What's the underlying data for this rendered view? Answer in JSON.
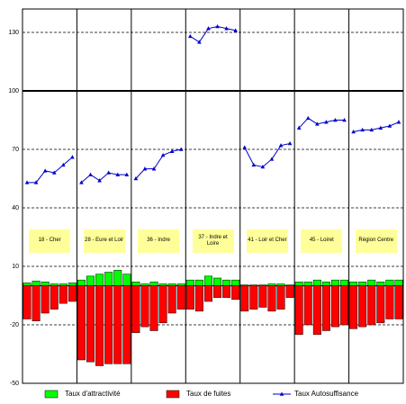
{
  "chart_data": {
    "type": "bar-line",
    "categories": [
      "18 - Cher",
      "28 - Eure et Loir",
      "36 - Indre",
      "37 - Indre et Loire",
      "41 - Loir et Cher",
      "45 - Loiret",
      "Région Centre"
    ],
    "series": [
      {
        "name": "Taux d'attractivité",
        "color": "#00ff00",
        "kind": "bar",
        "values": [
          [
            1.5,
            2.5,
            2,
            1,
            1,
            1.5
          ],
          [
            3,
            5,
            6,
            7,
            8,
            6
          ],
          [
            2,
            1,
            2,
            1,
            1,
            1
          ],
          [
            3,
            3,
            5,
            4,
            3,
            3
          ],
          [
            0.5,
            0.5,
            0.5,
            1,
            1,
            0.5
          ],
          [
            2,
            2,
            3,
            2,
            3,
            3
          ],
          [
            2,
            2,
            3,
            2,
            3,
            3
          ]
        ]
      },
      {
        "name": "Taux de fuites",
        "color": "#ff0000",
        "kind": "bar",
        "values": [
          [
            -17,
            -18,
            -14,
            -12,
            -9,
            -8
          ],
          [
            -38,
            -39,
            -41,
            -40,
            -40,
            -40
          ],
          [
            -24,
            -21,
            -23,
            -19,
            -14,
            -12
          ],
          [
            -12,
            -13,
            -8,
            -6,
            -6,
            -7
          ],
          [
            -13,
            -12,
            -11,
            -13,
            -12,
            -6
          ],
          [
            -25,
            -20,
            -25,
            -23,
            -21,
            -20
          ],
          [
            -22,
            -21,
            -20,
            -19,
            -17,
            -17
          ]
        ]
      },
      {
        "name": "Taux Autosuffisance",
        "color": "#0000cc",
        "kind": "line",
        "values": [
          [
            53,
            53,
            59,
            58,
            62,
            66
          ],
          [
            53,
            57,
            54,
            58,
            57,
            57
          ],
          [
            55,
            60,
            60,
            67,
            69,
            70
          ],
          [
            128,
            125,
            132,
            133,
            132,
            131
          ],
          [
            71,
            62,
            61,
            65,
            72,
            73
          ],
          [
            81,
            86,
            83,
            84,
            85,
            85
          ],
          [
            79,
            80,
            80,
            81,
            82,
            84
          ]
        ]
      }
    ],
    "ylim": [
      -50,
      142
    ],
    "yticks": [
      130,
      100,
      70,
      40,
      10,
      -20,
      -50
    ],
    "reference_line": 100,
    "grid": true,
    "legend": "bottom"
  }
}
